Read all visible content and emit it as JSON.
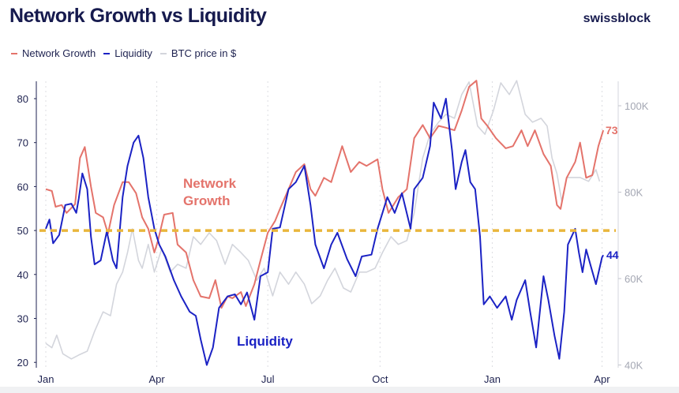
{
  "title": "Network Growth vs Liquidity",
  "brand": "swissblock",
  "legend": [
    {
      "label": "Network Growth",
      "color": "#e4736b"
    },
    {
      "label": "Liquidity",
      "color": "#1b22c4"
    },
    {
      "label": "BTC price in $",
      "color": "#d3d5dc"
    }
  ],
  "annotations": {
    "network_growth_line1": "Network",
    "network_growth_line2": "Growth",
    "liquidity": "Liquidity",
    "ng_last": "73",
    "liq_last": "44"
  },
  "chart_data": {
    "type": "line",
    "title": "Network Growth vs Liquidity",
    "x_unit": "days since Jan 1 (year 1)",
    "xlim": [
      0,
      470
    ],
    "x_ticks": [
      {
        "day": 0,
        "label": "Jan"
      },
      {
        "day": 91,
        "label": "Apr"
      },
      {
        "day": 182,
        "label": "Jul"
      },
      {
        "day": 274,
        "label": "Oct"
      },
      {
        "day": 366,
        "label": "Jan"
      },
      {
        "day": 456,
        "label": "Apr"
      }
    ],
    "left_axis": {
      "ylim": [
        18,
        84
      ],
      "ticks": [
        20,
        30,
        40,
        50,
        60,
        70,
        80
      ]
    },
    "right_axis": {
      "ylim": [
        38,
        106
      ],
      "ticks": [
        {
          "v": 40,
          "label": "40K"
        },
        {
          "v": 60,
          "label": "60K"
        },
        {
          "v": 80,
          "label": "80K"
        },
        {
          "v": 100,
          "label": "100K"
        }
      ]
    },
    "reference_line": {
      "value": 50,
      "color": "#e9b63c"
    },
    "series": [
      {
        "name": "Network Growth",
        "axis": "left",
        "color": "#e4736b",
        "points": [
          [
            0,
            59.4
          ],
          [
            5,
            59
          ],
          [
            8,
            55.4
          ],
          [
            13,
            55.8
          ],
          [
            17,
            54
          ],
          [
            24,
            56
          ],
          [
            28,
            66.5
          ],
          [
            32,
            69
          ],
          [
            37,
            60
          ],
          [
            41,
            54
          ],
          [
            47,
            53
          ],
          [
            51,
            49.3
          ],
          [
            56,
            55.8
          ],
          [
            63,
            61
          ],
          [
            68,
            61
          ],
          [
            74,
            58.5
          ],
          [
            79,
            53
          ],
          [
            84,
            50.4
          ],
          [
            89,
            45
          ],
          [
            92,
            47.7
          ],
          [
            97,
            53.6
          ],
          [
            104,
            54
          ],
          [
            108,
            46.8
          ],
          [
            115,
            45
          ],
          [
            121,
            38.7
          ],
          [
            127,
            35
          ],
          [
            134,
            34.6
          ],
          [
            139,
            38.7
          ],
          [
            144,
            32.4
          ],
          [
            149,
            35
          ],
          [
            153,
            34.6
          ],
          [
            160,
            36
          ],
          [
            164,
            32.8
          ],
          [
            171,
            37.8
          ],
          [
            176,
            43.2
          ],
          [
            182,
            49.5
          ],
          [
            188,
            52.2
          ],
          [
            192,
            54.9
          ],
          [
            199,
            59.4
          ],
          [
            205,
            63.3
          ],
          [
            212,
            65.1
          ],
          [
            217,
            59.4
          ],
          [
            221,
            57.9
          ],
          [
            228,
            62
          ],
          [
            234,
            61
          ],
          [
            243,
            69.2
          ],
          [
            250,
            63.3
          ],
          [
            257,
            65.6
          ],
          [
            263,
            64.7
          ],
          [
            272,
            66.2
          ],
          [
            276,
            59.4
          ],
          [
            281,
            54
          ],
          [
            289,
            57.6
          ],
          [
            296,
            59.4
          ],
          [
            302,
            71
          ],
          [
            309,
            74
          ],
          [
            315,
            71
          ],
          [
            322,
            73.8
          ],
          [
            328,
            73.4
          ],
          [
            335,
            72.8
          ],
          [
            341,
            77.3
          ],
          [
            347,
            82.7
          ],
          [
            353,
            84.1
          ],
          [
            357,
            75.5
          ],
          [
            362,
            73.8
          ],
          [
            369,
            71
          ],
          [
            377,
            68.7
          ],
          [
            383,
            69.2
          ],
          [
            390,
            72.8
          ],
          [
            395,
            69.2
          ],
          [
            401,
            72.8
          ],
          [
            408,
            67.4
          ],
          [
            414,
            64.7
          ],
          [
            419,
            55.8
          ],
          [
            422,
            54.9
          ],
          [
            427,
            62
          ],
          [
            434,
            65.6
          ],
          [
            438,
            70
          ],
          [
            443,
            62
          ],
          [
            448,
            62.6
          ],
          [
            453,
            69.2
          ],
          [
            457,
            72.8
          ]
        ]
      },
      {
        "name": "Liquidity",
        "axis": "left",
        "color": "#1b22c4",
        "points": [
          [
            0,
            50.4
          ],
          [
            3,
            52.5
          ],
          [
            6,
            47.1
          ],
          [
            11,
            49
          ],
          [
            16,
            55.8
          ],
          [
            21,
            56.1
          ],
          [
            25,
            54
          ],
          [
            27,
            57.2
          ],
          [
            30,
            63
          ],
          [
            34,
            59.4
          ],
          [
            37,
            48.6
          ],
          [
            40,
            42.3
          ],
          [
            45,
            43.2
          ],
          [
            50,
            49.8
          ],
          [
            55,
            43.2
          ],
          [
            58,
            41.4
          ],
          [
            63,
            57.6
          ],
          [
            67,
            64.7
          ],
          [
            72,
            70
          ],
          [
            76,
            71.6
          ],
          [
            80,
            66.5
          ],
          [
            84,
            57.6
          ],
          [
            89,
            50.4
          ],
          [
            93,
            46.8
          ],
          [
            98,
            44.1
          ],
          [
            105,
            38.7
          ],
          [
            111,
            35
          ],
          [
            118,
            31.5
          ],
          [
            123,
            30.6
          ],
          [
            127,
            25.2
          ],
          [
            132,
            19.4
          ],
          [
            137,
            23.4
          ],
          [
            142,
            32.4
          ],
          [
            149,
            35
          ],
          [
            155,
            35.5
          ],
          [
            160,
            33.2
          ],
          [
            165,
            35.9
          ],
          [
            171,
            29.7
          ],
          [
            176,
            39.6
          ],
          [
            182,
            40.5
          ],
          [
            186,
            50.4
          ],
          [
            192,
            50.7
          ],
          [
            199,
            59.4
          ],
          [
            205,
            61
          ],
          [
            212,
            64.7
          ],
          [
            217,
            55.8
          ],
          [
            221,
            46.8
          ],
          [
            228,
            41.4
          ],
          [
            234,
            46.8
          ],
          [
            239,
            49.5
          ],
          [
            247,
            43.5
          ],
          [
            254,
            39.6
          ],
          [
            259,
            44.1
          ],
          [
            267,
            44.5
          ],
          [
            272,
            50.4
          ],
          [
            280,
            57.6
          ],
          [
            286,
            54
          ],
          [
            292,
            58.5
          ],
          [
            299,
            50.4
          ],
          [
            302,
            59.4
          ],
          [
            309,
            62
          ],
          [
            315,
            69.2
          ],
          [
            318,
            79.1
          ],
          [
            324,
            75.5
          ],
          [
            328,
            80
          ],
          [
            333,
            68.3
          ],
          [
            336,
            59.4
          ],
          [
            341,
            65.6
          ],
          [
            344,
            68.3
          ],
          [
            348,
            61
          ],
          [
            352,
            59.4
          ],
          [
            356,
            48.6
          ],
          [
            359,
            33.2
          ],
          [
            364,
            35
          ],
          [
            370,
            32.4
          ],
          [
            377,
            35
          ],
          [
            382,
            29.7
          ],
          [
            386,
            34.2
          ],
          [
            393,
            38.7
          ],
          [
            397,
            31.6
          ],
          [
            402,
            23.4
          ],
          [
            408,
            39.6
          ],
          [
            412,
            34.2
          ],
          [
            417,
            26.1
          ],
          [
            421,
            20.8
          ],
          [
            425,
            31.5
          ],
          [
            428,
            46.8
          ],
          [
            434,
            50.4
          ],
          [
            437,
            45
          ],
          [
            440,
            40.5
          ],
          [
            443,
            45.7
          ],
          [
            447,
            41.7
          ],
          [
            451,
            37.8
          ],
          [
            456,
            43.9
          ],
          [
            457,
            44.4
          ]
        ]
      },
      {
        "name": "BTC price in $",
        "axis": "right",
        "unit": "K USD",
        "color": "#d3d5dc",
        "points": [
          [
            0,
            45
          ],
          [
            5,
            44
          ],
          [
            9,
            46.9
          ],
          [
            14,
            42.6
          ],
          [
            21,
            41.4
          ],
          [
            27,
            42.3
          ],
          [
            34,
            43.2
          ],
          [
            40,
            47.8
          ],
          [
            47,
            52.3
          ],
          [
            53,
            51.4
          ],
          [
            58,
            58.7
          ],
          [
            63,
            61.5
          ],
          [
            67,
            66
          ],
          [
            71,
            71.5
          ],
          [
            76,
            64.2
          ],
          [
            79,
            62.4
          ],
          [
            84,
            67.9
          ],
          [
            89,
            61.5
          ],
          [
            95,
            66.9
          ],
          [
            102,
            61.5
          ],
          [
            108,
            63.3
          ],
          [
            115,
            62.4
          ],
          [
            121,
            69.7
          ],
          [
            127,
            67.9
          ],
          [
            134,
            70.6
          ],
          [
            140,
            68.8
          ],
          [
            147,
            63.3
          ],
          [
            153,
            67.9
          ],
          [
            160,
            66
          ],
          [
            166,
            64.2
          ],
          [
            173,
            59.6
          ],
          [
            179,
            62.4
          ],
          [
            186,
            56
          ],
          [
            192,
            61.5
          ],
          [
            199,
            58.7
          ],
          [
            205,
            61.5
          ],
          [
            212,
            58.7
          ],
          [
            218,
            54.2
          ],
          [
            225,
            56
          ],
          [
            231,
            59.6
          ],
          [
            237,
            62.4
          ],
          [
            244,
            57.8
          ],
          [
            250,
            56.9
          ],
          [
            257,
            61.5
          ],
          [
            263,
            61.5
          ],
          [
            270,
            62.4
          ],
          [
            276,
            66
          ],
          [
            283,
            69.7
          ],
          [
            289,
            67.9
          ],
          [
            296,
            68.8
          ],
          [
            302,
            75.2
          ],
          [
            309,
            87.9
          ],
          [
            315,
            93.4
          ],
          [
            322,
            96.2
          ],
          [
            328,
            98
          ],
          [
            335,
            97.1
          ],
          [
            341,
            102.6
          ],
          [
            347,
            105.5
          ],
          [
            354,
            95.3
          ],
          [
            360,
            93.4
          ],
          [
            367,
            98.9
          ],
          [
            373,
            105.3
          ],
          [
            380,
            102.6
          ],
          [
            386,
            105.8
          ],
          [
            393,
            98
          ],
          [
            399,
            96.2
          ],
          [
            406,
            97.1
          ],
          [
            411,
            95.3
          ],
          [
            415,
            87.9
          ],
          [
            419,
            84.3
          ],
          [
            423,
            77.9
          ],
          [
            427,
            83.4
          ],
          [
            432,
            83.4
          ],
          [
            438,
            83.4
          ],
          [
            445,
            82.5
          ],
          [
            451,
            85.2
          ],
          [
            454,
            82.5
          ]
        ]
      }
    ]
  }
}
